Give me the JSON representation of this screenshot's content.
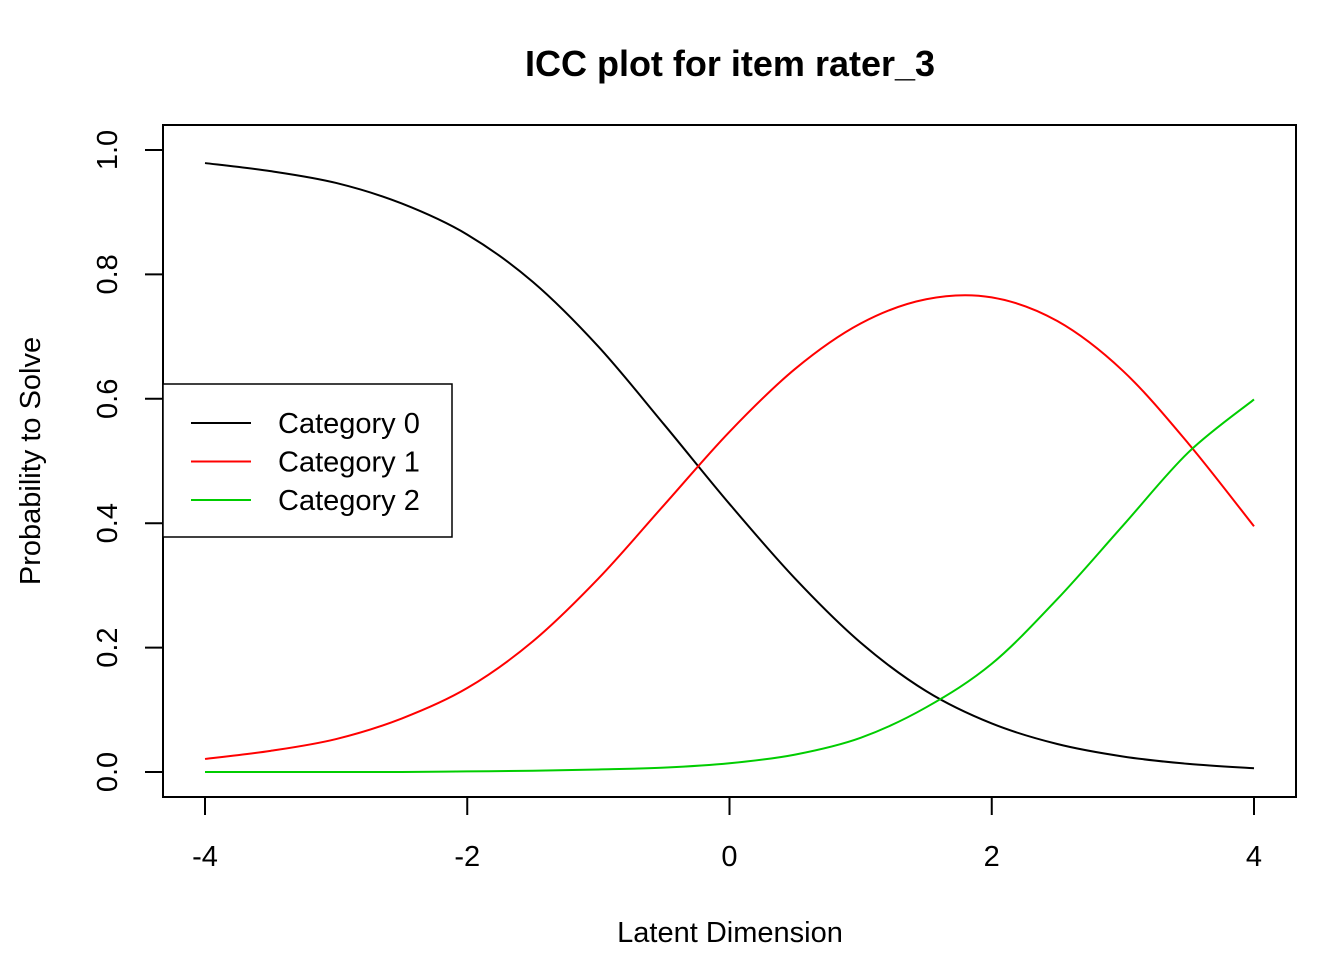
{
  "chart_data": {
    "type": "line",
    "title": "ICC plot for item rater_3",
    "xlabel": "Latent Dimension",
    "ylabel": "Probability to Solve",
    "xlim": [
      -4,
      4
    ],
    "ylim": [
      0,
      1
    ],
    "x_ticks": [
      "-4",
      "-2",
      "0",
      "2",
      "4"
    ],
    "y_ticks": [
      "0.0",
      "0.2",
      "0.4",
      "0.6",
      "0.8",
      "1.0"
    ],
    "grid": false,
    "legend_position": "left",
    "x": [
      -4,
      -3.5,
      -3,
      -2.5,
      -2,
      -1.5,
      -1,
      -0.5,
      0,
      0.5,
      1,
      1.5,
      2,
      2.5,
      3,
      3.5,
      4
    ],
    "series": [
      {
        "name": "Category 0",
        "color": "#000000",
        "values": [
          0.979,
          0.966,
          0.947,
          0.914,
          0.864,
          0.788,
          0.684,
          0.559,
          0.431,
          0.311,
          0.208,
          0.13,
          0.078,
          0.045,
          0.025,
          0.013,
          0.006
        ]
      },
      {
        "name": "Category 1",
        "color": "#ff0000",
        "values": [
          0.021,
          0.034,
          0.053,
          0.086,
          0.135,
          0.21,
          0.311,
          0.429,
          0.547,
          0.648,
          0.721,
          0.76,
          0.763,
          0.725,
          0.645,
          0.528,
          0.395
        ]
      },
      {
        "name": "Category 2",
        "color": "#00cd00",
        "values": [
          0.0,
          0.0,
          0.0,
          0.0,
          0.001,
          0.002,
          0.004,
          0.007,
          0.014,
          0.028,
          0.055,
          0.104,
          0.174,
          0.278,
          0.396,
          0.514,
          0.599
        ]
      }
    ]
  }
}
